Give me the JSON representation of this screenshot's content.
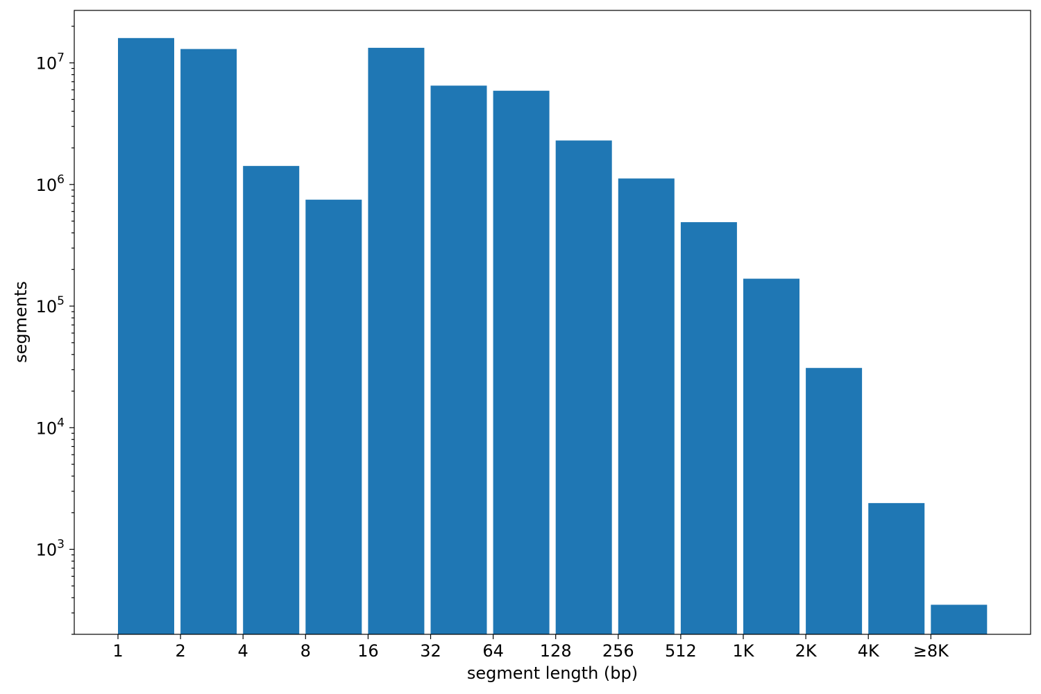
{
  "chart_data": {
    "type": "bar",
    "yscale": "log",
    "categories": [
      "1",
      "2",
      "4",
      "8",
      "16",
      "32",
      "64",
      "128",
      "256",
      "512",
      "1K",
      "2K",
      "4K",
      "≥8K"
    ],
    "values": [
      16000000,
      13000000,
      1420000,
      750000,
      13300000,
      6500000,
      5900000,
      2300000,
      1120000,
      490000,
      168000,
      31000,
      2400,
      350
    ],
    "xlabel": "segment length (bp)",
    "ylabel": "segments",
    "ylim": [
      200,
      27000000
    ],
    "yticks": [
      {
        "base": "10",
        "exp": "3",
        "value": 1000
      },
      {
        "base": "10",
        "exp": "4",
        "value": 10000
      },
      {
        "base": "10",
        "exp": "5",
        "value": 100000
      },
      {
        "base": "10",
        "exp": "6",
        "value": 1000000
      },
      {
        "base": "10",
        "exp": "7",
        "value": 10000000
      }
    ],
    "grid": false,
    "color": "#1f77b4"
  }
}
